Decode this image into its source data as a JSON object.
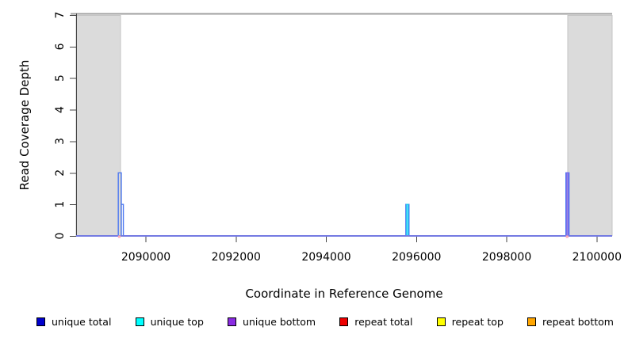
{
  "chart_data": {
    "type": "line",
    "title": "",
    "xlabel": "Coordinate in Reference Genome",
    "ylabel": "Read Coverage Depth",
    "xlim": [
      2088453,
      2100337
    ],
    "ylim": [
      0,
      7
    ],
    "x_ticks": [
      2090000,
      2092000,
      2094000,
      2096000,
      2098000,
      2100000
    ],
    "y_ticks": [
      0,
      1,
      2,
      3,
      4,
      5,
      6,
      7
    ],
    "grid": false,
    "legend_position": "bottom",
    "masked_regions": [
      [
        2088453,
        2089438
      ],
      [
        2099350,
        2100337
      ]
    ],
    "mask_line_y": 7,
    "colors": {
      "masked_region": "#dbdbdb",
      "masked_edge": "#c4c4c4",
      "mask_line": "#a0a0a0",
      "axis": "#444444",
      "tick_text": "#000000",
      "baseline_mark": "#ffa8b8"
    },
    "series": [
      {
        "name": "unique total",
        "color": "#0000cd",
        "line_color": "#4d79f0",
        "segments": [
          {
            "from": 2089388,
            "to": 2089455,
            "depth": 2
          },
          {
            "from": 2089455,
            "to": 2089500,
            "depth": 1
          },
          {
            "from": 2095763,
            "to": 2095833,
            "depth": 1
          },
          {
            "from": 2099312,
            "to": 2099382,
            "depth": 2
          }
        ]
      },
      {
        "name": "unique top",
        "color": "#00ffff",
        "line_color": "#19d2f2",
        "segments": [
          {
            "from": 2095763,
            "to": 2095833,
            "depth": 1
          }
        ]
      },
      {
        "name": "unique bottom",
        "color": "#8a2be2",
        "line_color": "#7b68ee",
        "segments": [
          {
            "from": 2099312,
            "to": 2099382,
            "depth": 2
          }
        ]
      },
      {
        "name": "repeat total",
        "color": "#ee0000",
        "line_color": "#ee0000",
        "segments": []
      },
      {
        "name": "repeat top",
        "color": "#ffff00",
        "line_color": "#ffff00",
        "segments": []
      },
      {
        "name": "repeat bottom",
        "color": "#ffa500",
        "line_color": "#ffa500",
        "segments": []
      }
    ],
    "baseline_marks": [
      {
        "at": 2089410
      },
      {
        "at": 2099340
      }
    ]
  }
}
